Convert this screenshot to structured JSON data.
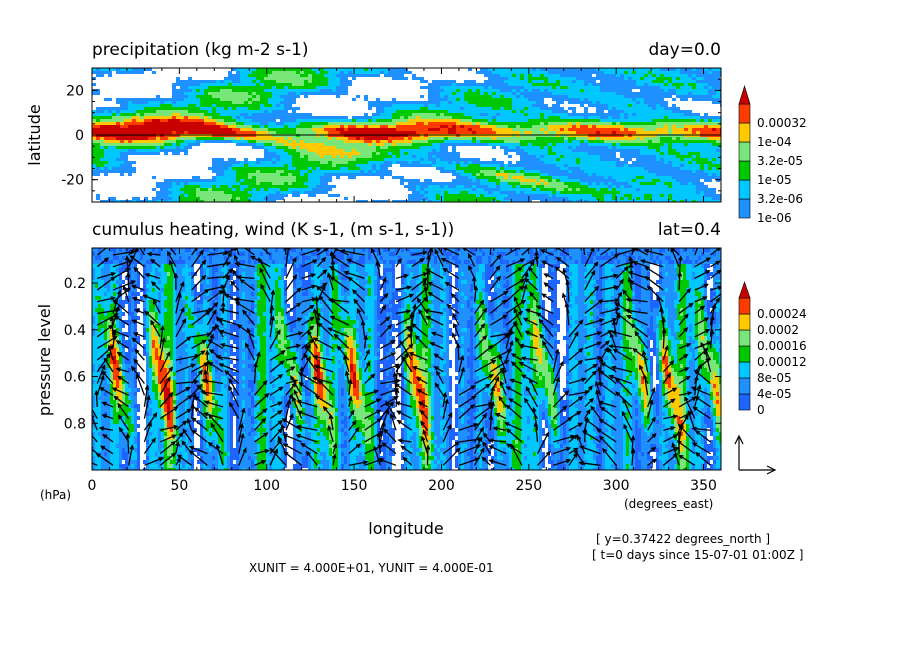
{
  "chart_data": [
    {
      "type": "heatmap",
      "title": "precipitation (kg m-2 s-1)",
      "right_title": "day=0.0",
      "xlabel": "",
      "ylabel": "latitude",
      "xlim": [
        0,
        360
      ],
      "ylim": [
        -30,
        30
      ],
      "x_ticks": [],
      "y_ticks": [
        20,
        0,
        -20
      ],
      "reference_line": 0,
      "colorbar": {
        "levels": [
          "1e-06",
          "3.2e-06",
          "1e-05",
          "3.2e-05",
          "1e-04",
          "0.00032"
        ],
        "colors": [
          "#1e90ff",
          "#00c8ff",
          "#00c800",
          "#78e678",
          "#ffc800",
          "#ff3c00",
          "#c80000"
        ]
      }
    },
    {
      "type": "heatmap",
      "title": "cumulus heating, wind (K s-1, (m s-1, s-1))",
      "right_title": "lat=0.4",
      "xlabel": "longitude",
      "x_unit": "(degrees_east)",
      "ylabel": "pressure level",
      "y_unit": "(hPa)",
      "xlim": [
        0,
        360
      ],
      "ylim": [
        1.0,
        0.05
      ],
      "x_ticks": [
        0,
        50,
        100,
        150,
        200,
        250,
        300,
        350
      ],
      "y_ticks": [
        0.2,
        0.4,
        0.6,
        0.8
      ],
      "vector_overlay": true,
      "colorbar": {
        "levels": [
          "0",
          "4e-05",
          "8e-05",
          "0.00012",
          "0.00016",
          "0.0002",
          "0.00024"
        ],
        "colors": [
          "#1e64ff",
          "#1e90ff",
          "#00c8ff",
          "#00c800",
          "#78e678",
          "#ffc800",
          "#ff3c00",
          "#c80000"
        ]
      },
      "units_note": "XUNIT = 4.000E+01, YUNIT = 4.000E-01"
    }
  ],
  "info": {
    "line1": "[ y=0.37422 degrees_north ]",
    "line2": "[ t=0 days since 15-07-01 01:00Z ]"
  }
}
